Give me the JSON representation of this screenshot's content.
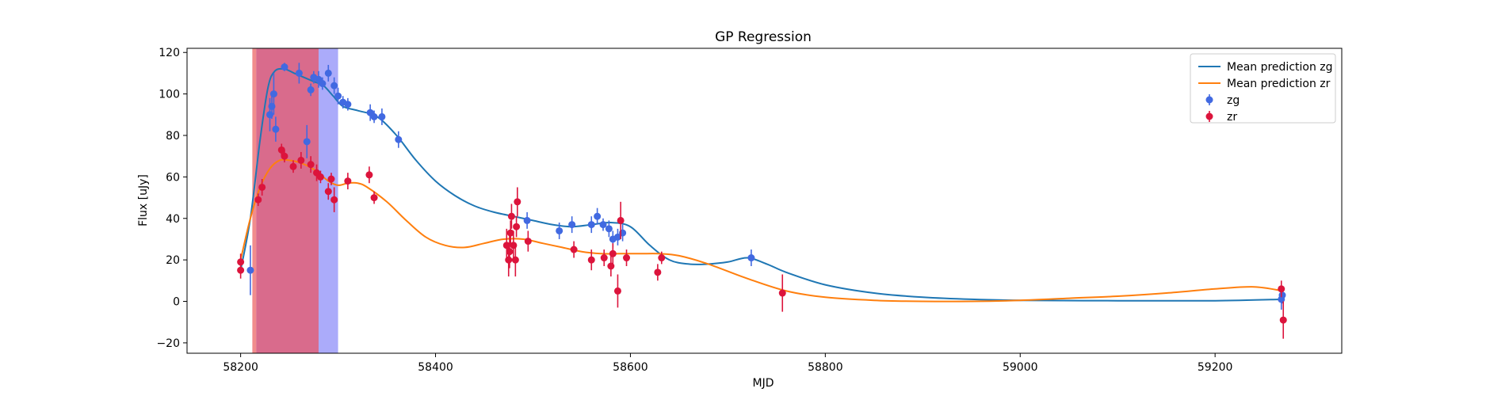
{
  "chart_data": {
    "type": "scatter",
    "title": "GP Regression",
    "xlabel": "MJD",
    "ylabel": "Flux [uJy]",
    "xlim": [
      58145,
      59330
    ],
    "ylim": [
      -25,
      122
    ],
    "xticks": [
      58200,
      58400,
      58600,
      58800,
      59000,
      59200
    ],
    "yticks": [
      -20,
      0,
      20,
      40,
      60,
      80,
      100,
      120
    ],
    "legend_position": "top-right",
    "shaded_regions": [
      {
        "x0": 58212,
        "x1": 58216,
        "color": "#f08080",
        "opacity": 0.9
      },
      {
        "x0": 58216,
        "x1": 58280,
        "color": "#cc3a66",
        "opacity": 0.75
      },
      {
        "x0": 58280,
        "x1": 58300,
        "color": "#8f8ff8",
        "opacity": 0.75
      }
    ],
    "lines": [
      {
        "name": "Mean prediction zg",
        "color": "#1f77b4",
        "x": [
          58200,
          58210,
          58220,
          58228,
          58235,
          58245,
          58255,
          58265,
          58275,
          58285,
          58295,
          58305,
          58320,
          58340,
          58360,
          58380,
          58400,
          58420,
          58440,
          58460,
          58480,
          58500,
          58520,
          58540,
          58560,
          58580,
          58600,
          58620,
          58640,
          58660,
          58680,
          58700,
          58720,
          58740,
          58760,
          58800,
          58850,
          58900,
          58950,
          59000,
          59100,
          59200,
          59270
        ],
        "y": [
          15,
          40,
          78,
          103,
          111,
          112,
          110,
          108,
          106,
          104,
          99,
          94,
          92,
          89,
          80,
          68,
          58,
          51,
          46,
          43,
          41,
          39,
          37,
          36,
          37,
          38,
          36,
          27,
          20,
          18,
          18,
          19,
          21,
          18,
          14,
          8,
          4,
          2,
          1,
          0.5,
          0.3,
          0.3,
          1
        ]
      },
      {
        "name": "Mean prediction zr",
        "color": "#ff7f0e",
        "x": [
          58200,
          58210,
          58220,
          58230,
          58240,
          58250,
          58260,
          58270,
          58280,
          58290,
          58300,
          58310,
          58320,
          58330,
          58350,
          58370,
          58390,
          58410,
          58430,
          58450,
          58470,
          58490,
          58510,
          58530,
          58550,
          58570,
          58590,
          58610,
          58630,
          58650,
          58680,
          58720,
          58760,
          58800,
          58850,
          58900,
          58950,
          59000,
          59050,
          59100,
          59150,
          59200,
          59240,
          59270
        ],
        "y": [
          20,
          40,
          55,
          64,
          68,
          68,
          67,
          65,
          62,
          58,
          56,
          57,
          57,
          55,
          48,
          39,
          31,
          27,
          26,
          28,
          30,
          30,
          28,
          26,
          24,
          23,
          23,
          23,
          23,
          22,
          18,
          11,
          5,
          2,
          0.5,
          0,
          0,
          0.5,
          1.5,
          2.5,
          4,
          6,
          7,
          5
        ]
      }
    ],
    "series": [
      {
        "name": "zg",
        "color": "#4169e1",
        "points": [
          {
            "x": 58210,
            "y": 15,
            "err": 12
          },
          {
            "x": 58230,
            "y": 90,
            "err": 8
          },
          {
            "x": 58232,
            "y": 94,
            "err": 6
          },
          {
            "x": 58234,
            "y": 100,
            "err": 10
          },
          {
            "x": 58236,
            "y": 83,
            "err": 6
          },
          {
            "x": 58245,
            "y": 113,
            "err": 2
          },
          {
            "x": 58260,
            "y": 110,
            "err": 5
          },
          {
            "x": 58268,
            "y": 77,
            "err": 8
          },
          {
            "x": 58272,
            "y": 102,
            "err": 3
          },
          {
            "x": 58275,
            "y": 108,
            "err": 3
          },
          {
            "x": 58280,
            "y": 107,
            "err": 4
          },
          {
            "x": 58284,
            "y": 105,
            "err": 3
          },
          {
            "x": 58290,
            "y": 110,
            "err": 4
          },
          {
            "x": 58296,
            "y": 104,
            "err": 4
          },
          {
            "x": 58300,
            "y": 99,
            "err": 4
          },
          {
            "x": 58305,
            "y": 96,
            "err": 3
          },
          {
            "x": 58310,
            "y": 95,
            "err": 3
          },
          {
            "x": 58333,
            "y": 91,
            "err": 4
          },
          {
            "x": 58337,
            "y": 89,
            "err": 3
          },
          {
            "x": 58345,
            "y": 89,
            "err": 4
          },
          {
            "x": 58362,
            "y": 78,
            "err": 4
          },
          {
            "x": 58494,
            "y": 39,
            "err": 4
          },
          {
            "x": 58527,
            "y": 34,
            "err": 4
          },
          {
            "x": 58540,
            "y": 37,
            "err": 4
          },
          {
            "x": 58560,
            "y": 37,
            "err": 4
          },
          {
            "x": 58566,
            "y": 41,
            "err": 4
          },
          {
            "x": 58572,
            "y": 37,
            "err": 3
          },
          {
            "x": 58578,
            "y": 35,
            "err": 4
          },
          {
            "x": 58582,
            "y": 30,
            "err": 4
          },
          {
            "x": 58587,
            "y": 31,
            "err": 4
          },
          {
            "x": 58592,
            "y": 33,
            "err": 4
          },
          {
            "x": 58724,
            "y": 21,
            "err": 4
          },
          {
            "x": 59268,
            "y": 1,
            "err": 5
          },
          {
            "x": 59269,
            "y": 3,
            "err": 4
          }
        ]
      },
      {
        "name": "zr",
        "color": "#dc143c",
        "points": [
          {
            "x": 58200,
            "y": 19,
            "err": 4
          },
          {
            "x": 58200,
            "y": 15,
            "err": 4
          },
          {
            "x": 58218,
            "y": 49,
            "err": 3
          },
          {
            "x": 58222,
            "y": 55,
            "err": 4
          },
          {
            "x": 58242,
            "y": 73,
            "err": 3
          },
          {
            "x": 58245,
            "y": 70,
            "err": 3
          },
          {
            "x": 58254,
            "y": 65,
            "err": 3
          },
          {
            "x": 58262,
            "y": 68,
            "err": 4
          },
          {
            "x": 58272,
            "y": 66,
            "err": 4
          },
          {
            "x": 58278,
            "y": 62,
            "err": 4
          },
          {
            "x": 58282,
            "y": 60,
            "err": 3
          },
          {
            "x": 58290,
            "y": 53,
            "err": 4
          },
          {
            "x": 58293,
            "y": 59,
            "err": 3
          },
          {
            "x": 58296,
            "y": 49,
            "err": 6
          },
          {
            "x": 58310,
            "y": 58,
            "err": 4
          },
          {
            "x": 58332,
            "y": 61,
            "err": 4
          },
          {
            "x": 58337,
            "y": 50,
            "err": 3
          },
          {
            "x": 58473,
            "y": 27,
            "err": 8
          },
          {
            "x": 58475,
            "y": 20,
            "err": 8
          },
          {
            "x": 58476,
            "y": 24,
            "err": 8
          },
          {
            "x": 58477,
            "y": 33,
            "err": 6
          },
          {
            "x": 58478,
            "y": 41,
            "err": 6
          },
          {
            "x": 58480,
            "y": 27,
            "err": 7
          },
          {
            "x": 58482,
            "y": 20,
            "err": 8
          },
          {
            "x": 58483,
            "y": 36,
            "err": 5
          },
          {
            "x": 58484,
            "y": 48,
            "err": 7
          },
          {
            "x": 58495,
            "y": 29,
            "err": 5
          },
          {
            "x": 58542,
            "y": 25,
            "err": 4
          },
          {
            "x": 58560,
            "y": 20,
            "err": 5
          },
          {
            "x": 58573,
            "y": 21,
            "err": 4
          },
          {
            "x": 58580,
            "y": 17,
            "err": 5
          },
          {
            "x": 58582,
            "y": 23,
            "err": 5
          },
          {
            "x": 58587,
            "y": 5,
            "err": 8
          },
          {
            "x": 58590,
            "y": 39,
            "err": 9
          },
          {
            "x": 58596,
            "y": 21,
            "err": 4
          },
          {
            "x": 58628,
            "y": 14,
            "err": 4
          },
          {
            "x": 58632,
            "y": 21,
            "err": 3
          },
          {
            "x": 58756,
            "y": 4,
            "err": 9
          },
          {
            "x": 59268,
            "y": 6,
            "err": 4
          },
          {
            "x": 59270,
            "y": -9,
            "err": 9
          }
        ]
      }
    ]
  }
}
